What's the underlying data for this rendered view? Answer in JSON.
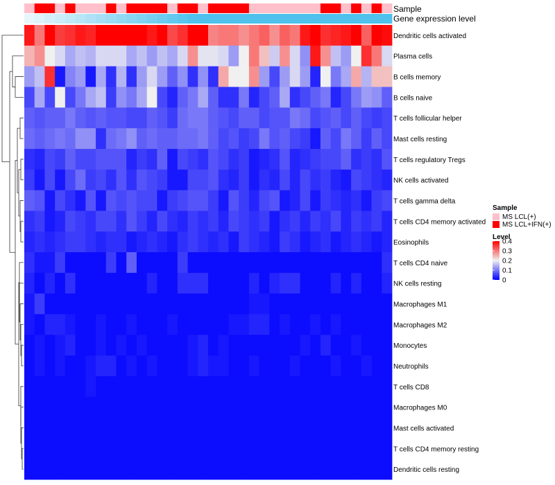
{
  "chart_data": {
    "type": "heatmap",
    "title": "",
    "annotation_tracks": [
      {
        "name": "Sample",
        "label": "Sample"
      },
      {
        "name": "Gene expression level",
        "label": "Gene expression level"
      }
    ],
    "sample_groups": [
      "L",
      "H",
      "H",
      "L",
      "H",
      "L",
      "L",
      "L",
      "H",
      "L",
      "H",
      "H",
      "H",
      "H",
      "L",
      "H",
      "H",
      "L",
      "H",
      "H",
      "H",
      "H",
      "L",
      "L",
      "L",
      "L",
      "L",
      "L",
      "L",
      "H",
      "H",
      "L",
      "H",
      "L",
      "H",
      "L"
    ],
    "expression_color_range": [
      "#e8f6fc",
      "#4fc1ec"
    ],
    "rows": [
      "Dendritic cells activated",
      "Plasma cells",
      "B cells memory",
      "B cells naive",
      "T cells follicular helper",
      "Mast cells resting",
      "T cells regulatory  Tregs",
      "NK cells activated",
      "T cells gamma delta",
      "T cells CD4 memory activated",
      "Eosinophils",
      "T cells CD4 naive",
      "NK cells resting",
      "Macrophages M1",
      "Macrophages M2",
      "Monocytes",
      "Neutrophils",
      "T cells CD8",
      "Macrophages M0",
      "Mast cells activated",
      "T cells CD4 memory resting",
      "Dendritic cells resting"
    ],
    "values": [
      [
        0.38,
        0.3,
        0.42,
        0.35,
        0.36,
        0.38,
        0.37,
        0.41,
        0.42,
        0.42,
        0.4,
        0.42,
        0.38,
        0.42,
        0.34,
        0.36,
        0.41,
        0.4,
        0.29,
        0.3,
        0.3,
        0.28,
        0.3,
        0.32,
        0.28,
        0.32,
        0.3,
        0.38,
        0.4,
        0.36,
        0.37,
        0.38,
        0.4,
        0.32,
        0.4,
        0.39
      ],
      [
        0.25,
        0.28,
        0.2,
        0.18,
        0.14,
        0.16,
        0.15,
        0.18,
        0.18,
        0.18,
        0.14,
        0.16,
        0.13,
        0.16,
        0.14,
        0.18,
        0.28,
        0.19,
        0.19,
        0.18,
        0.13,
        0.2,
        0.3,
        0.24,
        0.17,
        0.28,
        0.18,
        0.12,
        0.38,
        0.28,
        0.16,
        0.13,
        0.2,
        0.36,
        0.3,
        0.18
      ],
      [
        0.13,
        0.16,
        0.36,
        0.02,
        0.11,
        0.13,
        0.02,
        0.14,
        0.04,
        0.15,
        0.04,
        0.13,
        0.18,
        0.13,
        0.08,
        0.12,
        0.04,
        0.12,
        0.04,
        0.26,
        0.2,
        0.2,
        0.28,
        0.13,
        0.06,
        0.13,
        0.18,
        0.13,
        0.03,
        0.2,
        0.1,
        0.14,
        0.26,
        0.15,
        0.24,
        0.24
      ],
      [
        0.06,
        0.14,
        0.06,
        0.2,
        0.06,
        0.1,
        0.14,
        0.16,
        0.05,
        0.12,
        0.1,
        0.14,
        0.2,
        0.06,
        0.03,
        0.08,
        0.1,
        0.14,
        0.08,
        0.04,
        0.04,
        0.1,
        0.03,
        0.06,
        0.08,
        0.14,
        0.04,
        0.06,
        0.08,
        0.1,
        0.03,
        0.06,
        0.1,
        0.13,
        0.12,
        0.08
      ],
      [
        0.08,
        0.07,
        0.08,
        0.08,
        0.1,
        0.08,
        0.07,
        0.08,
        0.07,
        0.07,
        0.06,
        0.06,
        0.08,
        0.07,
        0.05,
        0.09,
        0.1,
        0.1,
        0.08,
        0.07,
        0.06,
        0.08,
        0.08,
        0.06,
        0.07,
        0.07,
        0.1,
        0.09,
        0.06,
        0.07,
        0.08,
        0.06,
        0.08,
        0.06,
        0.05,
        0.06
      ],
      [
        0.09,
        0.08,
        0.09,
        0.1,
        0.09,
        0.12,
        0.12,
        0.04,
        0.09,
        0.1,
        0.12,
        0.08,
        0.09,
        0.08,
        0.08,
        0.09,
        0.09,
        0.1,
        0.08,
        0.06,
        0.07,
        0.05,
        0.06,
        0.1,
        0.07,
        0.08,
        0.06,
        0.05,
        0.02,
        0.08,
        0.06,
        0.1,
        0.08,
        0.05,
        0.08,
        0.06
      ],
      [
        0.04,
        0.03,
        0.06,
        0.05,
        0.08,
        0.06,
        0.06,
        0.07,
        0.07,
        0.07,
        0.03,
        0.05,
        0.04,
        0.08,
        0.02,
        0.06,
        0.05,
        0.04,
        0.07,
        0.06,
        0.04,
        0.05,
        0.02,
        0.03,
        0.04,
        0.07,
        0.03,
        0.04,
        0.05,
        0.06,
        0.06,
        0.08,
        0.04,
        0.05,
        0.04,
        0.07
      ],
      [
        0.05,
        0.02,
        0.06,
        0.02,
        0.06,
        0.09,
        0.05,
        0.06,
        0.04,
        0.07,
        0.04,
        0.07,
        0.06,
        0.05,
        0.02,
        0.02,
        0.06,
        0.06,
        0.07,
        0.04,
        0.03,
        0.05,
        0.02,
        0.04,
        0.03,
        0.06,
        0.03,
        0.06,
        0.04,
        0.05,
        0.03,
        0.02,
        0.06,
        0.05,
        0.04,
        0.03
      ],
      [
        0.08,
        0.07,
        0.02,
        0.06,
        0.04,
        0.02,
        0.07,
        0.02,
        0.07,
        0.06,
        0.07,
        0.06,
        0.06,
        0.02,
        0.05,
        0.06,
        0.07,
        0.07,
        0.05,
        0.02,
        0.07,
        0.05,
        0.03,
        0.06,
        0.07,
        0.02,
        0.03,
        0.06,
        0.02,
        0.05,
        0.04,
        0.03,
        0.04,
        0.02,
        0.05,
        0.06
      ],
      [
        0.04,
        0.05,
        0.02,
        0.03,
        0.06,
        0.05,
        0.04,
        0.06,
        0.06,
        0.04,
        0.07,
        0.05,
        0.03,
        0.06,
        0.04,
        0.03,
        0.05,
        0.04,
        0.05,
        0.03,
        0.06,
        0.05,
        0.04,
        0.05,
        0.02,
        0.04,
        0.05,
        0.03,
        0.05,
        0.04,
        0.06,
        0.03,
        0.05,
        0.04,
        0.05,
        0.03
      ],
      [
        0.03,
        0.04,
        0.03,
        0.04,
        0.05,
        0.05,
        0.04,
        0.03,
        0.04,
        0.04,
        0.02,
        0.03,
        0.04,
        0.03,
        0.02,
        0.04,
        0.05,
        0.04,
        0.03,
        0.04,
        0.02,
        0.05,
        0.04,
        0.03,
        0.02,
        0.05,
        0.04,
        0.02,
        0.03,
        0.04,
        0.02,
        0.03,
        0.04,
        0.03,
        0.02,
        0.03
      ],
      [
        0.04,
        0.02,
        0.02,
        0.05,
        0.01,
        0.01,
        0.01,
        0.01,
        0.05,
        0.01,
        0.08,
        0.01,
        0.01,
        0.01,
        0.01,
        0.05,
        0.01,
        0.01,
        0.01,
        0.01,
        0.01,
        0.01,
        0.01,
        0.01,
        0.01,
        0.01,
        0.01,
        0.01,
        0.01,
        0.01,
        0.01,
        0.01,
        0.01,
        0.01,
        0.01,
        0.04
      ],
      [
        0.03,
        0.01,
        0.03,
        0.01,
        0.04,
        0.01,
        0.01,
        0.01,
        0.01,
        0.01,
        0.01,
        0.01,
        0.03,
        0.01,
        0.01,
        0.04,
        0.04,
        0.04,
        0.01,
        0.01,
        0.01,
        0.01,
        0.03,
        0.01,
        0.03,
        0.04,
        0.04,
        0.01,
        0.01,
        0.01,
        0.03,
        0.01,
        0.03,
        0.01,
        0.01,
        0.03
      ],
      [
        0.02,
        0.05,
        0.01,
        0.01,
        0.01,
        0.01,
        0.01,
        0.01,
        0.01,
        0.01,
        0.01,
        0.01,
        0.01,
        0.01,
        0.01,
        0.01,
        0.01,
        0.01,
        0.01,
        0.01,
        0.01,
        0.01,
        0.02,
        0.02,
        0.01,
        0.01,
        0.01,
        0.01,
        0.01,
        0.01,
        0.01,
        0.01,
        0.01,
        0.01,
        0.01,
        0.01
      ],
      [
        0.02,
        0.01,
        0.03,
        0.03,
        0.02,
        0.01,
        0.01,
        0.02,
        0.01,
        0.01,
        0.02,
        0.01,
        0.01,
        0.01,
        0.02,
        0.01,
        0.01,
        0.01,
        0.01,
        0.01,
        0.02,
        0.02,
        0.03,
        0.03,
        0.01,
        0.02,
        0.01,
        0.01,
        0.02,
        0.01,
        0.02,
        0.01,
        0.01,
        0.01,
        0.01,
        0.01
      ],
      [
        0.01,
        0.02,
        0.01,
        0.02,
        0.03,
        0.01,
        0.01,
        0.02,
        0.01,
        0.02,
        0.01,
        0.02,
        0.01,
        0.01,
        0.01,
        0.01,
        0.02,
        0.03,
        0.01,
        0.02,
        0.01,
        0.01,
        0.01,
        0.01,
        0.01,
        0.01,
        0.01,
        0.02,
        0.01,
        0.03,
        0.01,
        0.01,
        0.02,
        0.01,
        0.01,
        0.01
      ],
      [
        0.01,
        0.02,
        0.01,
        0.02,
        0.01,
        0.01,
        0.02,
        0.03,
        0.03,
        0.01,
        0.02,
        0.01,
        0.02,
        0.01,
        0.01,
        0.01,
        0.02,
        0.03,
        0.02,
        0.02,
        0.01,
        0.01,
        0.02,
        0.01,
        0.01,
        0.01,
        0.02,
        0.01,
        0.01,
        0.01,
        0.02,
        0.01,
        0.01,
        0.02,
        0.01,
        0.01
      ],
      [
        0.01,
        0.01,
        0.01,
        0.01,
        0.01,
        0.01,
        0.02,
        0.01,
        0.01,
        0.01,
        0.01,
        0.01,
        0.01,
        0.01,
        0.01,
        0.01,
        0.01,
        0.01,
        0.01,
        0.01,
        0.01,
        0.01,
        0.01,
        0.01,
        0.01,
        0.01,
        0.01,
        0.01,
        0.01,
        0.01,
        0.01,
        0.01,
        0.01,
        0.01,
        0.01,
        0.01
      ],
      [
        0.01,
        0.01,
        0.01,
        0.01,
        0.01,
        0.01,
        0.01,
        0.01,
        0.01,
        0.01,
        0.01,
        0.01,
        0.01,
        0.01,
        0.01,
        0.01,
        0.01,
        0.01,
        0.01,
        0.01,
        0.01,
        0.01,
        0.01,
        0.01,
        0.01,
        0.01,
        0.01,
        0.01,
        0.01,
        0.01,
        0.01,
        0.01,
        0.01,
        0.01,
        0.01,
        0.01
      ],
      [
        0.01,
        0.01,
        0.01,
        0.01,
        0.01,
        0.01,
        0.01,
        0.01,
        0.01,
        0.01,
        0.01,
        0.01,
        0.01,
        0.01,
        0.01,
        0.01,
        0.01,
        0.01,
        0.01,
        0.01,
        0.01,
        0.01,
        0.01,
        0.01,
        0.01,
        0.01,
        0.01,
        0.01,
        0.01,
        0.01,
        0.01,
        0.01,
        0.01,
        0.01,
        0.01,
        0.01
      ],
      [
        0.01,
        0.01,
        0.01,
        0.01,
        0.01,
        0.01,
        0.01,
        0.01,
        0.01,
        0.01,
        0.01,
        0.01,
        0.01,
        0.01,
        0.01,
        0.01,
        0.01,
        0.01,
        0.01,
        0.01,
        0.01,
        0.01,
        0.01,
        0.01,
        0.01,
        0.01,
        0.01,
        0.01,
        0.01,
        0.01,
        0.01,
        0.01,
        0.01,
        0.01,
        0.01,
        0.01
      ],
      [
        0.01,
        0.01,
        0.01,
        0.01,
        0.01,
        0.01,
        0.01,
        0.01,
        0.01,
        0.01,
        0.01,
        0.01,
        0.01,
        0.01,
        0.01,
        0.01,
        0.01,
        0.01,
        0.01,
        0.01,
        0.01,
        0.01,
        0.01,
        0.01,
        0.01,
        0.01,
        0.01,
        0.01,
        0.01,
        0.01,
        0.01,
        0.01,
        0.01,
        0.01,
        0.01,
        0.01
      ]
    ],
    "value_range": [
      0,
      0.4
    ],
    "color_stops": [
      {
        "value": 0,
        "color": "#0000ff"
      },
      {
        "value": 0.2,
        "color": "#f0f0f0"
      },
      {
        "value": 0.4,
        "color": "#ff0000"
      }
    ],
    "legend": {
      "sample": {
        "title": "Sample",
        "entries": [
          {
            "code": "L",
            "label": "MS LCL(+)",
            "color": "#ffc0cb"
          },
          {
            "code": "H",
            "label": "MS LCL+IFN(+)",
            "color": "#ff0000"
          }
        ]
      },
      "level": {
        "title": "Level",
        "ticks": [
          {
            "value": 0.4,
            "label": "0.4"
          },
          {
            "value": 0.3,
            "label": "0.3"
          },
          {
            "value": 0.2,
            "label": "0.2"
          },
          {
            "value": 0.1,
            "label": "0.1"
          },
          {
            "value": 0,
            "label": "0"
          }
        ]
      },
      "placement": "right"
    },
    "row_dendrogram": true
  }
}
